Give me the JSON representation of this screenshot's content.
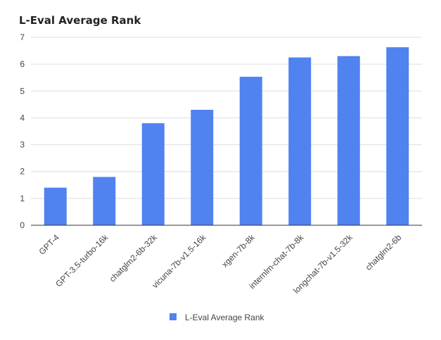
{
  "chart_data": {
    "type": "bar",
    "title": "L-Eval Average Rank",
    "xlabel": "",
    "ylabel": "",
    "categories": [
      "GPT-4",
      "GPT-3.5-turbo-16k",
      "chatglm2-6b-32k",
      "vicuna-7b-v1.5-16k",
      "xgen-7b-8k",
      "internlm-chat-7b-8k",
      "longchat-7b-v1.5-32k",
      "chatglm2-6b"
    ],
    "series": [
      {
        "name": "L-Eval Average Rank",
        "values": [
          1.4,
          1.8,
          3.8,
          4.3,
          5.53,
          6.25,
          6.3,
          6.63
        ]
      }
    ],
    "ylim": [
      0,
      7
    ],
    "yticks": [
      "0",
      "1",
      "2",
      "3",
      "4",
      "5",
      "6",
      "7"
    ],
    "grid": true,
    "legend_position": "bottom",
    "bar_color": "#5082f0"
  }
}
